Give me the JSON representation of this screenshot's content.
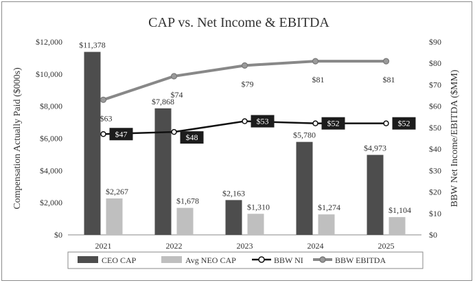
{
  "chart_data": {
    "type": "bar",
    "title": "CAP vs. Net Income & EBITDA",
    "categories": [
      "2021",
      "2022",
      "2023",
      "2024",
      "2025"
    ],
    "y_left": {
      "label": "Compensation Actually Paid ($000s)",
      "range": [
        0,
        12000
      ],
      "ticks": [
        0,
        2000,
        4000,
        6000,
        8000,
        10000,
        12000
      ],
      "tick_labels": [
        "$0",
        "$2,000",
        "$4,000",
        "$6,000",
        "$8,000",
        "$10,000",
        "$12,000"
      ]
    },
    "y_right": {
      "label": "BBW Net Income/EBITDA ($MM)",
      "range": [
        0,
        90
      ],
      "ticks": [
        0,
        10,
        20,
        30,
        40,
        50,
        60,
        70,
        80,
        90
      ],
      "tick_labels": [
        "$0",
        "$10",
        "$20",
        "$30",
        "$40",
        "$50",
        "$60",
        "$70",
        "$80",
        "$90"
      ]
    },
    "series": [
      {
        "name": "CEO CAP",
        "type": "bar",
        "axis": "left",
        "color": "#4d4d4d",
        "values": [
          11378,
          7868,
          2163,
          5780,
          4973
        ],
        "labels": [
          "$11,378",
          "$7,868",
          "$2,163",
          "$5,780",
          "$4,973"
        ]
      },
      {
        "name": "Avg NEO CAP",
        "type": "bar",
        "axis": "left",
        "color": "#bfbfbf",
        "values": [
          2267,
          1678,
          1310,
          1274,
          1104
        ],
        "labels": [
          "$2,267",
          "$1,678",
          "$1,310",
          "$1,274",
          "$1,104"
        ]
      },
      {
        "name": "BBW NI",
        "type": "line",
        "axis": "right",
        "color": "#111111",
        "values": [
          47,
          48,
          53,
          52,
          52
        ],
        "labels": [
          "$47",
          "$48",
          "$53",
          "$52",
          "$52"
        ]
      },
      {
        "name": "BBW EBITDA",
        "type": "line",
        "axis": "right",
        "color": "#888888",
        "values": [
          63,
          74,
          79,
          81,
          81
        ],
        "labels": [
          "$63",
          "$74",
          "$79",
          "$81",
          "$81"
        ]
      }
    ],
    "legend_position": "bottom",
    "grid": false
  }
}
